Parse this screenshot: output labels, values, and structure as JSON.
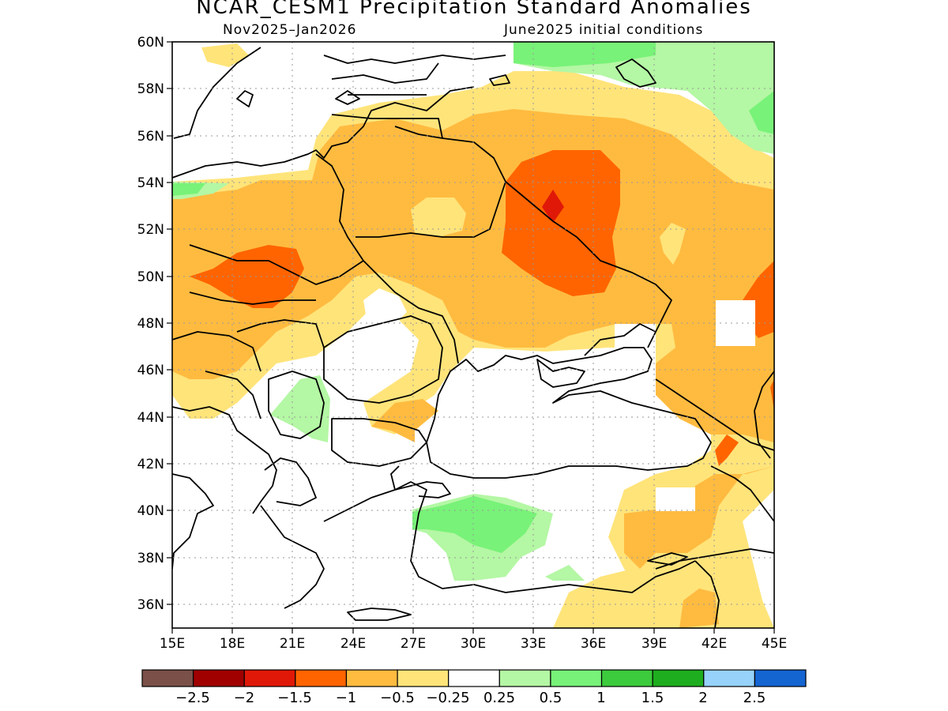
{
  "title": "NCAR_CESM1 Precipitation Standard Anomalies",
  "subtitle_left": "Nov2025–Jan2026",
  "subtitle_right": "June2025 initial conditions",
  "map": {
    "lon_range": [
      15,
      45
    ],
    "lat_range": [
      35,
      60
    ],
    "lon_ticks": [
      "15E",
      "18E",
      "21E",
      "24E",
      "27E",
      "30E",
      "33E",
      "36E",
      "39E",
      "42E",
      "45E"
    ],
    "lat_ticks": [
      "60N",
      "58N",
      "56N",
      "54N",
      "52N",
      "50N",
      "48N",
      "46N",
      "44N",
      "42N",
      "40N",
      "38N",
      "36N"
    ],
    "gridlines": true
  },
  "colorbar": {
    "colors": [
      "#7a5048",
      "#a00000",
      "#e01808",
      "#ff6400",
      "#ffbb40",
      "#ffe47a",
      "#ffffff",
      "#b4f7a4",
      "#78f278",
      "#3ccb3c",
      "#1ead1e",
      "#96d2fa",
      "#1464d2"
    ],
    "labels": [
      "−2.5",
      "−2",
      "−1.5",
      "−1",
      "−0.5",
      "−0.25",
      "0.25",
      "0.5",
      "1",
      "1.5",
      "2",
      "2.5"
    ]
  }
}
